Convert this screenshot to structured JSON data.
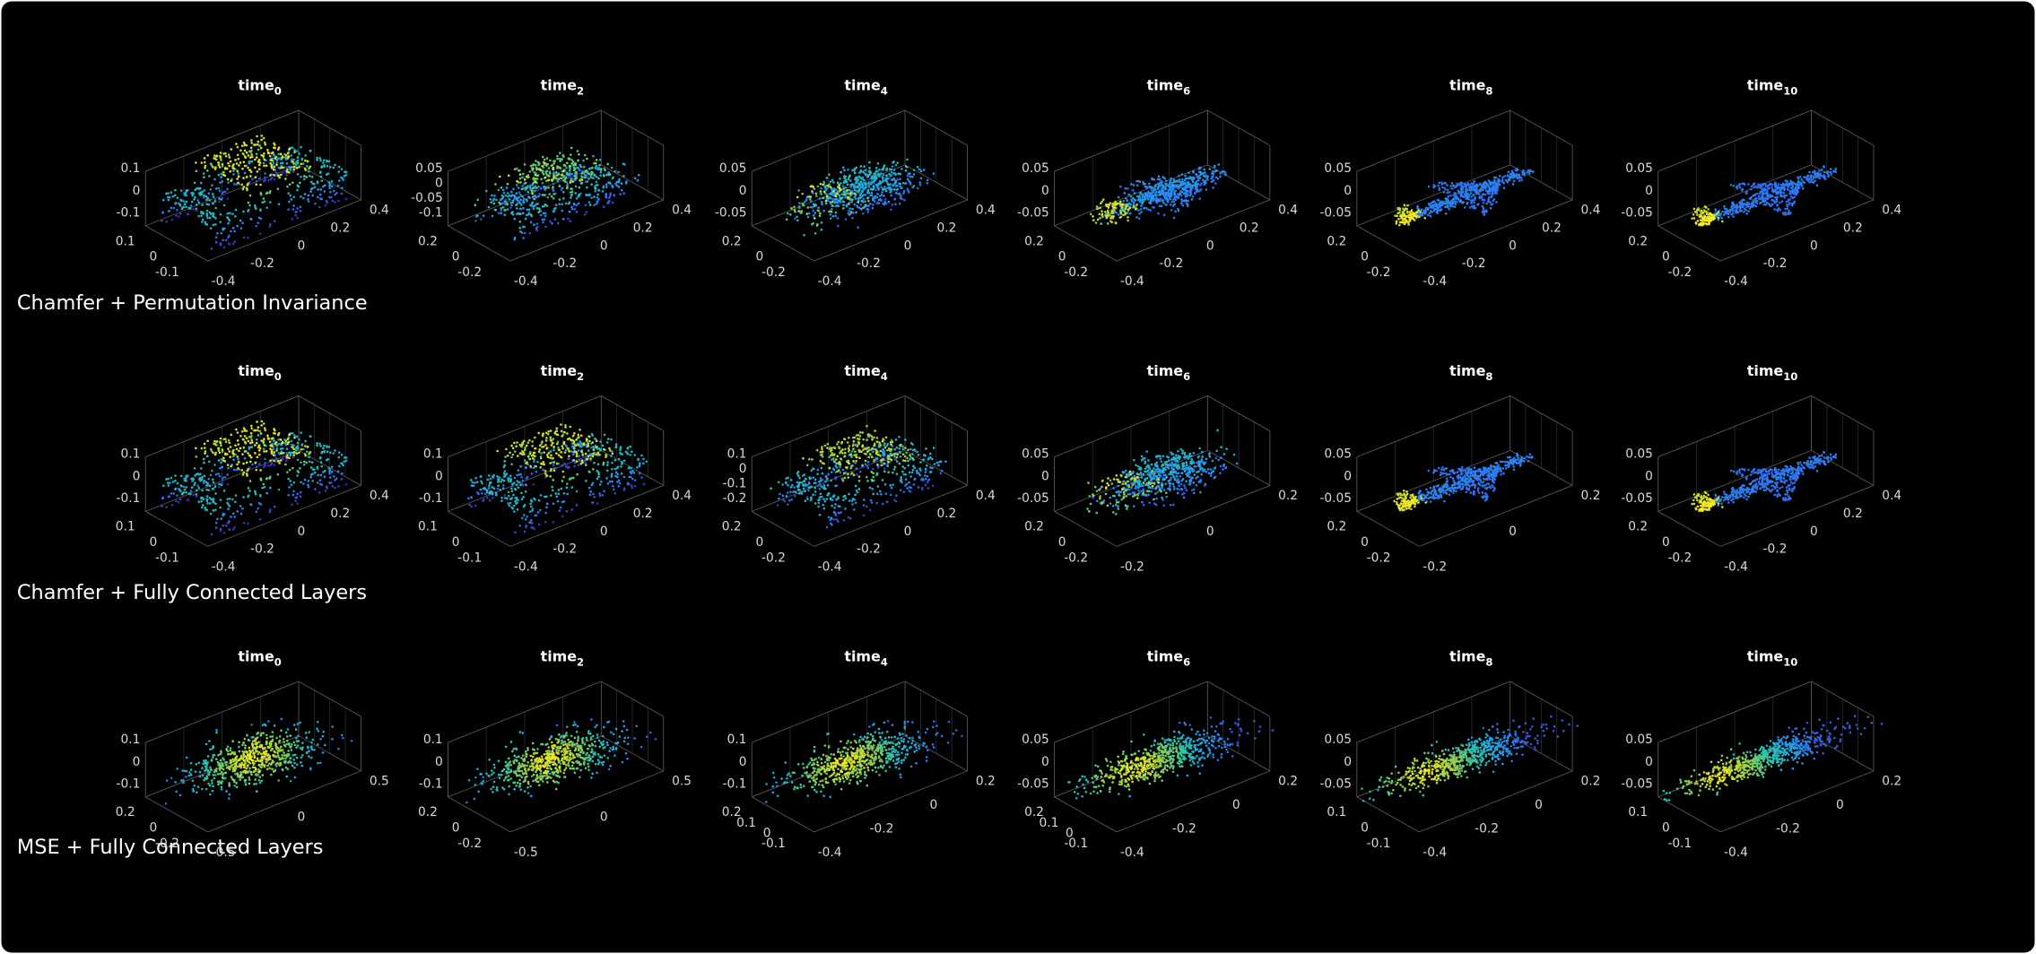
{
  "rows": [
    {
      "label": "Chamfer + Permutation Invariance",
      "panels": [
        {
          "title": "time",
          "subscript": "0",
          "zticks": [
            "0.1",
            "0",
            "-0.1"
          ],
          "yticks": [
            "0.1",
            "0",
            "-0.1"
          ],
          "xticks": [
            "-0.4",
            "-0.2",
            "0",
            "0.2",
            "0.4"
          ]
        },
        {
          "title": "time",
          "subscript": "2",
          "zticks": [
            "0.05",
            "0",
            "-0.05",
            "-0.1"
          ],
          "yticks": [
            "0.2",
            "0",
            "-0.2"
          ],
          "xticks": [
            "-0.4",
            "-0.2",
            "0",
            "0.2",
            "0.4"
          ]
        },
        {
          "title": "time",
          "subscript": "4",
          "zticks": [
            "0.05",
            "0",
            "-0.05"
          ],
          "yticks": [
            "0.2",
            "0",
            "-0.2"
          ],
          "xticks": [
            "-0.4",
            "-0.2",
            "0",
            "0.2",
            "0.4"
          ]
        },
        {
          "title": "time",
          "subscript": "6",
          "zticks": [
            "0.05",
            "0",
            "-0.05"
          ],
          "yticks": [
            "0.2",
            "0",
            "-0.2"
          ],
          "xticks": [
            "-0.4",
            "-0.2",
            "0",
            "0.2",
            "0.4"
          ]
        },
        {
          "title": "time",
          "subscript": "8",
          "zticks": [
            "0.05",
            "0",
            "-0.05"
          ],
          "yticks": [
            "0.2",
            "0",
            "-0.2"
          ],
          "xticks": [
            "-0.4",
            "-0.2",
            "0",
            "0.2",
            "0.4"
          ]
        },
        {
          "title": "time",
          "subscript": "10",
          "zticks": [
            "0.05",
            "0",
            "-0.05"
          ],
          "yticks": [
            "0.2",
            "0",
            "-0.2"
          ],
          "xticks": [
            "-0.4",
            "-0.2",
            "0",
            "0.2",
            "0.4"
          ]
        }
      ]
    },
    {
      "label": "Chamfer + Fully Connected Layers",
      "panels": [
        {
          "title": "time",
          "subscript": "0",
          "zticks": [
            "0.1",
            "0",
            "-0.1"
          ],
          "yticks": [
            "0.1",
            "0",
            "-0.1"
          ],
          "xticks": [
            "-0.4",
            "-0.2",
            "0",
            "0.2",
            "0.4"
          ]
        },
        {
          "title": "time",
          "subscript": "2",
          "zticks": [
            "0.1",
            "0",
            "-0.1"
          ],
          "yticks": [
            "0.1",
            "0",
            "-0.1"
          ],
          "xticks": [
            "-0.4",
            "-0.2",
            "0",
            "0.2",
            "0.4"
          ]
        },
        {
          "title": "time",
          "subscript": "4",
          "zticks": [
            "0.1",
            "0",
            "-0.1",
            "-0.2"
          ],
          "yticks": [
            "0.2",
            "0",
            "-0.2"
          ],
          "xticks": [
            "-0.4",
            "-0.2",
            "0",
            "0.2",
            "0.4"
          ]
        },
        {
          "title": "time",
          "subscript": "6",
          "zticks": [
            "0.05",
            "0",
            "-0.05"
          ],
          "yticks": [
            "0.2",
            "0",
            "-0.2"
          ],
          "xticks": [
            "-0.2",
            "0",
            "0.2"
          ]
        },
        {
          "title": "time",
          "subscript": "8",
          "zticks": [
            "0.05",
            "0",
            "-0.05"
          ],
          "yticks": [
            "0.2",
            "0",
            "-0.2"
          ],
          "xticks": [
            "-0.2",
            "0",
            "0.2"
          ]
        },
        {
          "title": "time",
          "subscript": "10",
          "zticks": [
            "0.05",
            "0",
            "-0.05"
          ],
          "yticks": [
            "0.2",
            "0",
            "-0.2"
          ],
          "xticks": [
            "-0.4",
            "-0.2",
            "0",
            "0.2",
            "0.4"
          ]
        }
      ]
    },
    {
      "label": "MSE + Fully Connected Layers",
      "panels": [
        {
          "title": "time",
          "subscript": "0",
          "zticks": [
            "0.1",
            "0",
            "-0.1"
          ],
          "yticks": [
            "0.2",
            "0",
            "-0.2"
          ],
          "xticks": [
            "-0.5",
            "0",
            "0.5"
          ]
        },
        {
          "title": "time",
          "subscript": "2",
          "zticks": [
            "0.1",
            "0",
            "-0.1"
          ],
          "yticks": [
            "0.2",
            "0",
            "-0.2"
          ],
          "xticks": [
            "-0.5",
            "0",
            "0.5"
          ]
        },
        {
          "title": "time",
          "subscript": "4",
          "zticks": [
            "0.1",
            "0",
            "-0.1"
          ],
          "yticks": [
            "0.2",
            "0.1",
            "0",
            "-0.1"
          ],
          "xticks": [
            "-0.4",
            "-0.2",
            "0",
            "0.2"
          ]
        },
        {
          "title": "time",
          "subscript": "6",
          "zticks": [
            "0.05",
            "0",
            "-0.05"
          ],
          "yticks": [
            "0.2",
            "0.1",
            "0",
            "-0.1"
          ],
          "xticks": [
            "-0.4",
            "-0.2",
            "0",
            "0.2"
          ]
        },
        {
          "title": "time",
          "subscript": "8",
          "zticks": [
            "0.05",
            "0",
            "-0.05"
          ],
          "yticks": [
            "0.1",
            "0",
            "-0.1"
          ],
          "xticks": [
            "-0.4",
            "-0.2",
            "0",
            "0.2"
          ]
        },
        {
          "title": "time",
          "subscript": "10",
          "zticks": [
            "0.05",
            "0",
            "-0.05"
          ],
          "yticks": [
            "0.1",
            "0",
            "-0.1"
          ],
          "xticks": [
            "-0.4",
            "-0.2",
            "0",
            "0.2"
          ]
        }
      ]
    }
  ]
}
